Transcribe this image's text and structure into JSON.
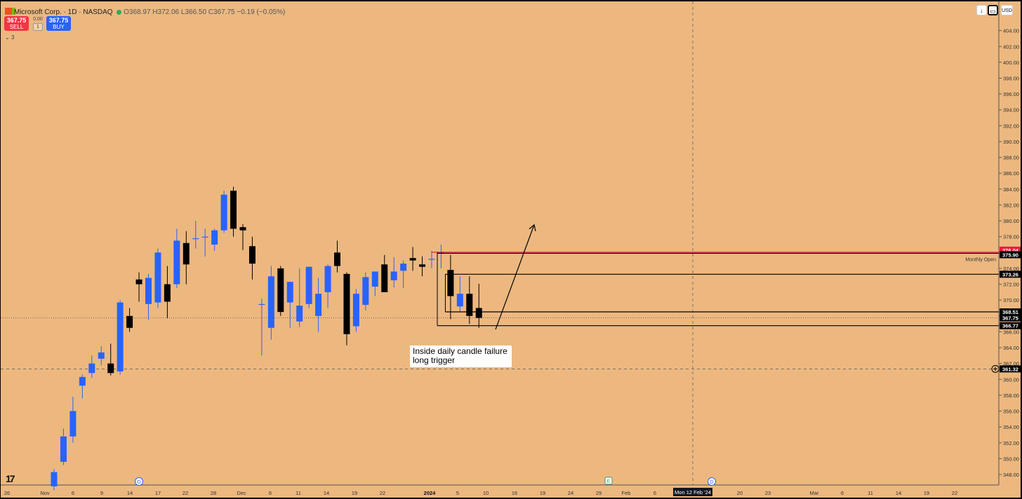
{
  "header": {
    "title": "Microsoft Corp. · 1D · NASDAQ",
    "ohlc": "O368.97 H372.06 L366.50 C367.75 −0.19 (−0.05%)",
    "indicator_count": "3",
    "currency": "USD",
    "logo": "17"
  },
  "trade": {
    "sell_price": "367.75",
    "sell_label": "SELL",
    "buy_price": "367.75",
    "buy_label": "BUY",
    "spread": "0.00",
    "qty": "1"
  },
  "annotation": {
    "line1": "Inside daily candle failure",
    "line2": "long trigger"
  },
  "colors": {
    "background": "#ecb880",
    "up_candle": "#2962ff",
    "down_candle": "#000000",
    "monthly_open_line": "#e91e3c",
    "level_line": "#000000"
  },
  "chart_data": {
    "type": "candlestick",
    "symbol": "Microsoft Corp.",
    "timeframe": "1D",
    "exchange": "NASDAQ",
    "ylim": [
      347,
      406
    ],
    "y_ticks": [
      348,
      350,
      352,
      354,
      356,
      358,
      360,
      362,
      364,
      366,
      368,
      370,
      372,
      374,
      376,
      378,
      380,
      382,
      384,
      386,
      388,
      390,
      392,
      394,
      396,
      398,
      400,
      402,
      404
    ],
    "x_ticks": [
      "26",
      "Nov",
      "6",
      "9",
      "14",
      "17",
      "22",
      "28",
      "Dec",
      "6",
      "11",
      "14",
      "19",
      "22",
      "2024",
      "5",
      "10",
      "16",
      "19",
      "24",
      "29",
      "Feb",
      "6",
      "Mon 12 Feb '24",
      "20",
      "23",
      "Mar",
      "6",
      "11",
      "14",
      "19",
      "22"
    ],
    "candles": [
      {
        "o": 346.5,
        "h": 348.7,
        "l": 346.0,
        "c": 348.3
      },
      {
        "o": 349.6,
        "h": 353.8,
        "l": 349.2,
        "c": 352.8
      },
      {
        "o": 352.8,
        "h": 357.8,
        "l": 352.0,
        "c": 356.0
      },
      {
        "o": 359.2,
        "h": 360.6,
        "l": 357.6,
        "c": 360.3
      },
      {
        "o": 360.8,
        "h": 363.0,
        "l": 360.2,
        "c": 362.0
      },
      {
        "o": 362.6,
        "h": 364.2,
        "l": 361.8,
        "c": 363.4
      },
      {
        "o": 362.0,
        "h": 364.5,
        "l": 360.5,
        "c": 360.8
      },
      {
        "o": 361.0,
        "h": 370.0,
        "l": 360.6,
        "c": 369.7
      },
      {
        "o": 368.0,
        "h": 369.0,
        "l": 366.0,
        "c": 366.5
      },
      {
        "o": 372.6,
        "h": 373.5,
        "l": 369.8,
        "c": 372.0
      },
      {
        "o": 369.5,
        "h": 373.3,
        "l": 367.5,
        "c": 372.8
      },
      {
        "o": 369.7,
        "h": 376.5,
        "l": 369.0,
        "c": 376.0
      },
      {
        "o": 372.0,
        "h": 374.3,
        "l": 367.7,
        "c": 369.8
      },
      {
        "o": 372.0,
        "h": 379.0,
        "l": 371.5,
        "c": 377.5
      },
      {
        "o": 377.2,
        "h": 378.7,
        "l": 372.0,
        "c": 374.5
      },
      {
        "o": 377.8,
        "h": 380.0,
        "l": 376.5,
        "c": 377.8
      },
      {
        "o": 378.0,
        "h": 379.0,
        "l": 375.5,
        "c": 378.0
      },
      {
        "o": 377.0,
        "h": 379.0,
        "l": 376.2,
        "c": 378.8
      },
      {
        "o": 378.8,
        "h": 383.8,
        "l": 378.5,
        "c": 383.3
      },
      {
        "o": 383.8,
        "h": 384.3,
        "l": 378.0,
        "c": 379.0
      },
      {
        "o": 379.2,
        "h": 379.6,
        "l": 376.3,
        "c": 378.8
      },
      {
        "o": 376.8,
        "h": 378.0,
        "l": 372.6,
        "c": 374.6
      },
      {
        "o": 369.5,
        "h": 370.2,
        "l": 363.0,
        "c": 369.5
      },
      {
        "o": 366.5,
        "h": 374.3,
        "l": 365.0,
        "c": 373.0
      },
      {
        "o": 374.0,
        "h": 374.3,
        "l": 368.0,
        "c": 368.5
      },
      {
        "o": 369.7,
        "h": 372.3,
        "l": 366.5,
        "c": 372.3
      },
      {
        "o": 367.3,
        "h": 374.0,
        "l": 366.6,
        "c": 369.3
      },
      {
        "o": 369.5,
        "h": 374.2,
        "l": 369.0,
        "c": 374.2
      },
      {
        "o": 368.0,
        "h": 372.8,
        "l": 366.0,
        "c": 370.8
      },
      {
        "o": 371.0,
        "h": 374.5,
        "l": 369.0,
        "c": 374.3
      },
      {
        "o": 376.0,
        "h": 377.5,
        "l": 373.5,
        "c": 374.3
      },
      {
        "o": 373.3,
        "h": 373.5,
        "l": 364.3,
        "c": 365.7
      },
      {
        "o": 366.7,
        "h": 371.4,
        "l": 366.0,
        "c": 370.8
      },
      {
        "o": 369.4,
        "h": 373.5,
        "l": 368.7,
        "c": 372.9
      },
      {
        "o": 371.7,
        "h": 373.6,
        "l": 370.5,
        "c": 373.6
      },
      {
        "o": 374.5,
        "h": 375.7,
        "l": 371.0,
        "c": 371.0
      },
      {
        "o": 372.5,
        "h": 375.4,
        "l": 371.6,
        "c": 373.6
      },
      {
        "o": 373.7,
        "h": 375.0,
        "l": 371.5,
        "c": 374.6
      },
      {
        "o": 375.3,
        "h": 376.7,
        "l": 373.7,
        "c": 375.0
      },
      {
        "o": 374.5,
        "h": 375.5,
        "l": 373.0,
        "c": 374.2
      },
      {
        "o": 375.2,
        "h": 376.2,
        "l": 374.0,
        "c": 375.2
      },
      {
        "o": 376.0,
        "h": 377.0,
        "l": 374.0,
        "c": 376.0
      },
      {
        "o": 373.8,
        "h": 375.7,
        "l": 367.6,
        "c": 370.5
      },
      {
        "o": 369.2,
        "h": 373.0,
        "l": 368.5,
        "c": 370.8
      },
      {
        "o": 370.8,
        "h": 373.0,
        "l": 367.0,
        "c": 368.0
      },
      {
        "o": 369.0,
        "h": 372.06,
        "l": 366.5,
        "c": 367.75
      }
    ],
    "levels": [
      {
        "label": "376.04",
        "value": 376.04,
        "color": "#e91e3c"
      },
      {
        "label": "375.90",
        "value": 375.9,
        "note": "Monthly Open"
      },
      {
        "label": "373.26",
        "value": 373.26
      },
      {
        "label": "368.51",
        "value": 368.51
      },
      {
        "label": "367.75",
        "value": 367.75,
        "note": "last price"
      },
      {
        "label": "366.77",
        "value": 366.77
      },
      {
        "label": "361.32",
        "value": 361.32,
        "note": "crosshair"
      }
    ],
    "monthly_open_label": "Monthly Open",
    "annotation_arrow": {
      "from_price": 366.3,
      "to_price": 379.5
    },
    "event_markers": [
      {
        "label": "D",
        "x_tick": "14"
      },
      {
        "label": "E",
        "x_tick": "29"
      },
      {
        "label": "D",
        "x_tick": "Mon 12 Feb '24"
      }
    ]
  }
}
